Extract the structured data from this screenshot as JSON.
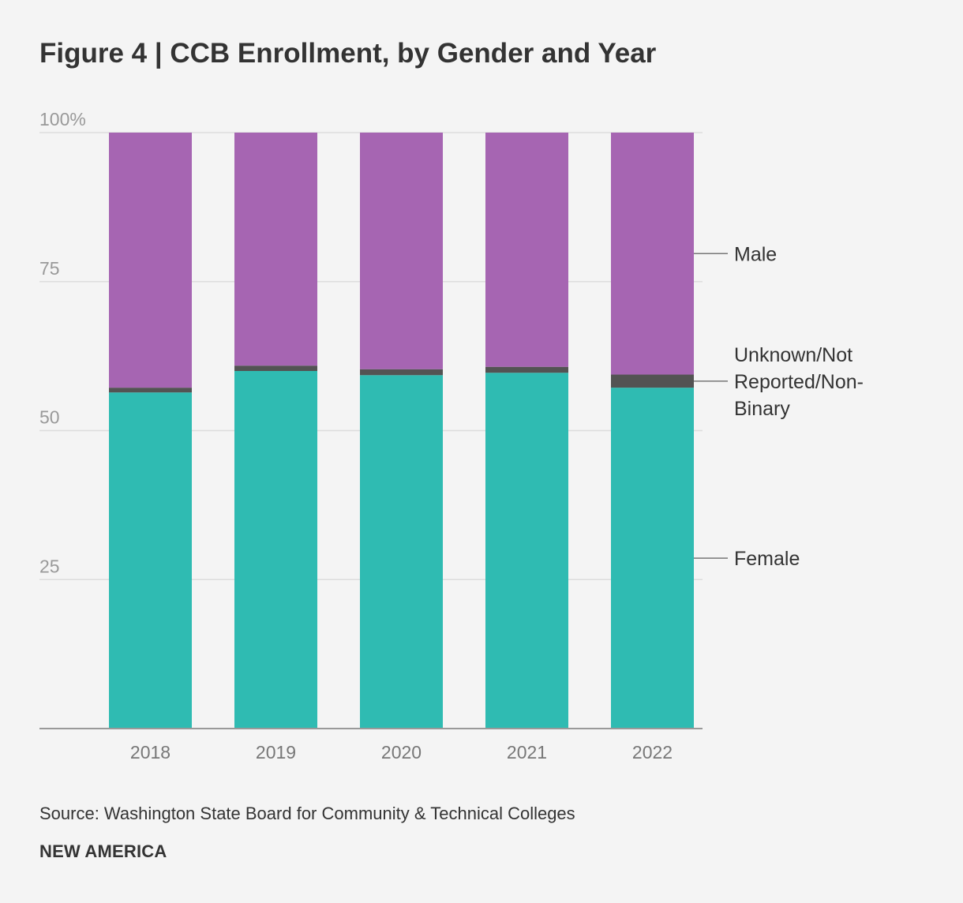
{
  "title": "Figure 4 | CCB Enrollment, by Gender and Year",
  "source": "Source: Washington State Board for Community & Technical Colleges",
  "brand": "NEW AMERICA",
  "colors": {
    "female": "#2fbbb2",
    "unknown": "#535353",
    "male": "#a665b2",
    "grid": "#dddddd",
    "axis": "#999999",
    "tick_text": "#999999",
    "label_text": "#333333"
  },
  "chart_data": {
    "type": "bar",
    "stacked": true,
    "title": "Figure 4 | CCB Enrollment, by Gender and Year",
    "xlabel": "",
    "ylabel": "",
    "ylim": [
      0,
      100
    ],
    "y_ticks": [
      {
        "value": 100,
        "label": "100%"
      },
      {
        "value": 75,
        "label": "75"
      },
      {
        "value": 50,
        "label": "50"
      },
      {
        "value": 25,
        "label": "25"
      }
    ],
    "categories": [
      "2018",
      "2019",
      "2020",
      "2021",
      "2022"
    ],
    "series": [
      {
        "key": "female",
        "name": "Female",
        "values": [
          56.4,
          60.0,
          59.3,
          59.7,
          57.2
        ]
      },
      {
        "key": "unknown",
        "name": "Unknown/Not Reported/Non-Binary",
        "values": [
          0.8,
          0.9,
          1.0,
          1.0,
          2.2
        ]
      },
      {
        "key": "male",
        "name": "Male",
        "values": [
          42.8,
          39.1,
          39.7,
          39.3,
          40.6
        ]
      }
    ],
    "legend": {
      "placement": "right, aligned to last bar",
      "entries": [
        {
          "key": "male",
          "lines": [
            "Male"
          ]
        },
        {
          "key": "unknown",
          "lines": [
            "Unknown/Not",
            "Reported/Non-",
            "Binary"
          ]
        },
        {
          "key": "female",
          "lines": [
            "Female"
          ]
        }
      ]
    }
  }
}
